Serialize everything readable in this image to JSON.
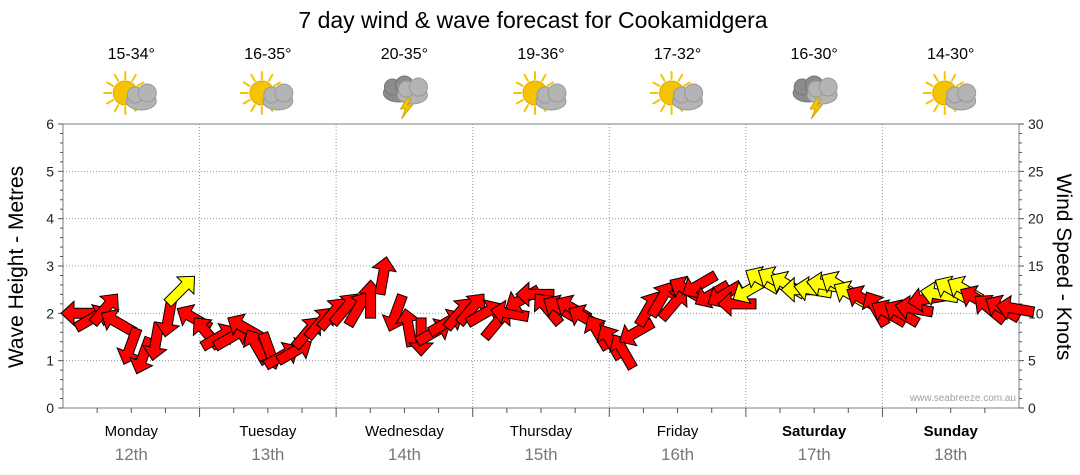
{
  "chart_data": {
    "type": "wind_wave_forecast",
    "title": "7 day wind & wave forecast for Cookamidgera",
    "y_left_label": "Wave Height - Metres",
    "y_right_label": "Wind Speed - Knots",
    "y_left_range": [
      0,
      6
    ],
    "y_right_range": [
      0,
      30
    ],
    "y_left_ticks": [
      "0",
      "1",
      "2",
      "3",
      "4",
      "5",
      "6"
    ],
    "y_right_ticks": [
      "0",
      "5",
      "10",
      "15",
      "20",
      "25",
      "30"
    ],
    "watermark": "www.seabreeze.com.au",
    "colors": {
      "strong": "#ff0000",
      "moderate": "#ffff00",
      "outline": "#000000",
      "sun": "#f5c400",
      "cloud": "#b4b4b4"
    },
    "days": [
      {
        "day": "Monday",
        "date": "12th",
        "temp": "15-34°",
        "icon": "partly-cloudy-icon",
        "weekend": false
      },
      {
        "day": "Tuesday",
        "date": "13th",
        "temp": "16-35°",
        "icon": "partly-cloudy-icon",
        "weekend": false
      },
      {
        "day": "Wednesday",
        "date": "14th",
        "temp": "20-35°",
        "icon": "thunderstorm-icon",
        "weekend": false
      },
      {
        "day": "Thursday",
        "date": "15th",
        "temp": "19-36°",
        "icon": "partly-cloudy-icon",
        "weekend": false
      },
      {
        "day": "Friday",
        "date": "16th",
        "temp": "17-32°",
        "icon": "partly-cloudy-icon",
        "weekend": false
      },
      {
        "day": "Saturday",
        "date": "17th",
        "temp": "16-30°",
        "icon": "thunderstorm-icon",
        "weekend": true
      },
      {
        "day": "Sunday",
        "date": "18th",
        "temp": "14-30°",
        "icon": "partly-cloudy-icon",
        "weekend": true
      }
    ],
    "wind_speed_kts": [
      10,
      9.5,
      10.5,
      9,
      6.5,
      5.5,
      7,
      9.5,
      12.5,
      9.5,
      8,
      7.5,
      7.5,
      8.5,
      6.5,
      6,
      5.5,
      6,
      8,
      9,
      10,
      10.5,
      10.5,
      11.5,
      14,
      10,
      8.5,
      7.5,
      8,
      9,
      10,
      10.5,
      10,
      9,
      10,
      11.5,
      12,
      10.5,
      10.5,
      10.5,
      9.5,
      8,
      7,
      6,
      8,
      10.5,
      11.5,
      11,
      12.5,
      13,
      12,
      12,
      11,
      12.5,
      13.5,
      13.5,
      13,
      12.5,
      12.5,
      13,
      13,
      12,
      11.5,
      10.5,
      10,
      10,
      10.5,
      11.5,
      12,
      12.5,
      12.5,
      11.5,
      10.5,
      10.5,
      10.5
    ],
    "wind_direction_deg": [
      270,
      60,
      40,
      300,
      200,
      200,
      190,
      190,
      45,
      300,
      320,
      60,
      60,
      300,
      330,
      160,
      60,
      60,
      40,
      40,
      40,
      40,
      30,
      0,
      10,
      200,
      350,
      180,
      60,
      60,
      40,
      40,
      60,
      40,
      280,
      240,
      270,
      320,
      300,
      300,
      300,
      330,
      330,
      330,
      240,
      30,
      30,
      40,
      300,
      240,
      240,
      240,
      270,
      240,
      300,
      300,
      300,
      270,
      280,
      280,
      300,
      300,
      300,
      330,
      300,
      300,
      280,
      260,
      280,
      300,
      300,
      300,
      310,
      300,
      280
    ]
  }
}
